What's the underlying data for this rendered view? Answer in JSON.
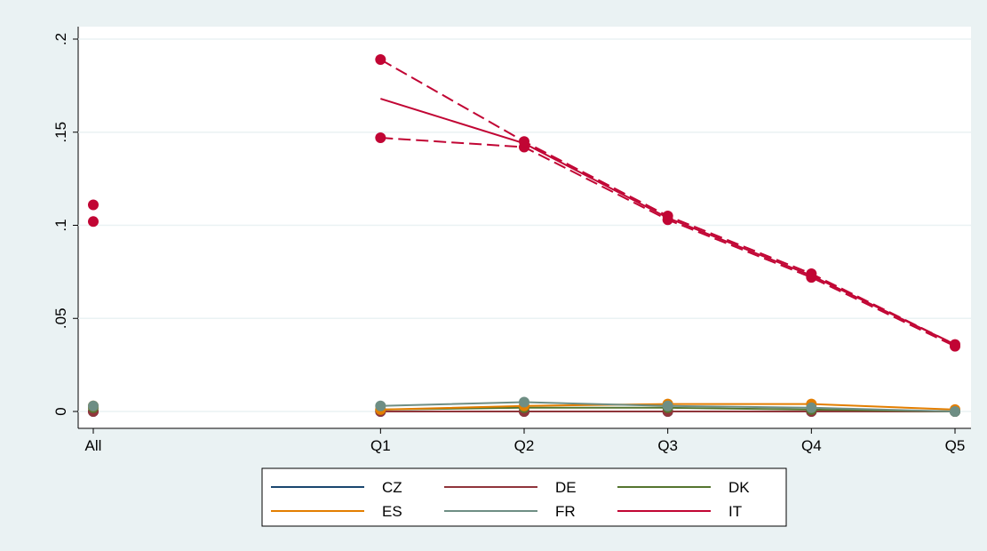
{
  "chart_data": {
    "type": "line",
    "x": [
      0,
      2,
      3,
      4,
      5,
      6
    ],
    "xlim": [
      0,
      6
    ],
    "xticks": [
      {
        "value": 0,
        "label": "All"
      },
      {
        "value": 2,
        "label": "Q1"
      },
      {
        "value": 3,
        "label": "Q2"
      },
      {
        "value": 4,
        "label": "Q3"
      },
      {
        "value": 5,
        "label": "Q4"
      },
      {
        "value": 6,
        "label": "Q5"
      }
    ],
    "ylim": [
      0,
      0.2
    ],
    "yticks": [
      {
        "value": 0,
        "label": "0"
      },
      {
        "value": 0.05,
        "label": ".05"
      },
      {
        "value": 0.1,
        "label": ".1"
      },
      {
        "value": 0.15,
        "label": ".15"
      },
      {
        "value": 0.2,
        "label": ".2"
      }
    ],
    "grid": true,
    "series": [
      {
        "name": "CZ",
        "color": "#1a476f",
        "values": [
          0,
          0,
          0,
          0,
          0,
          0
        ]
      },
      {
        "name": "DE",
        "color": "#90353b",
        "values": [
          0,
          0,
          0,
          0,
          0,
          0
        ]
      },
      {
        "name": "DK",
        "color": "#55752f",
        "values": [
          0.002,
          0.001,
          0.002,
          0.002,
          0.001,
          0
        ]
      },
      {
        "name": "ES",
        "color": "#e37e00",
        "values": [
          0.003,
          0.001,
          0.003,
          0.004,
          0.004,
          0.001
        ]
      },
      {
        "name": "FR",
        "color": "#6e8e84",
        "values": [
          0.003,
          0.003,
          0.005,
          0.003,
          0.002,
          0
        ]
      },
      {
        "name": "IT",
        "color": "#c10534",
        "values": [
          null,
          0.168,
          0.144,
          0.104,
          0.073,
          0.036
        ],
        "lower": [
          0.102,
          0.147,
          0.142,
          0.103,
          0.072,
          0.035
        ],
        "upper": [
          0.111,
          0.189,
          0.145,
          0.105,
          0.074,
          0.036
        ]
      }
    ]
  }
}
